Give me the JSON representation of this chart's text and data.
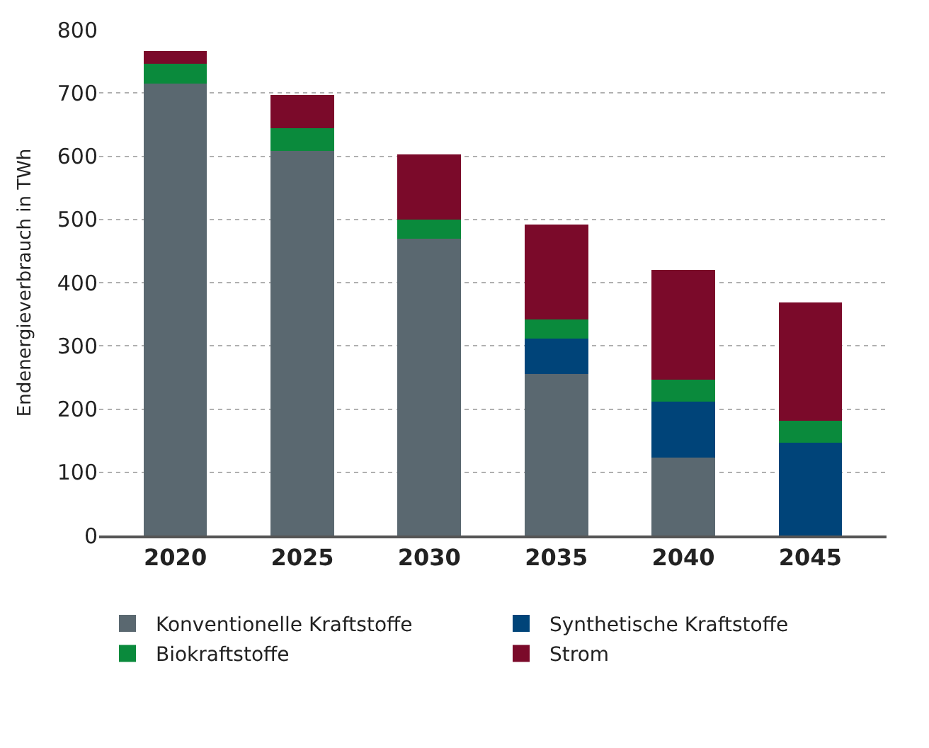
{
  "chart_data": {
    "type": "bar",
    "stacked": true,
    "ylabel": "Endenergieverbrauch in TWh",
    "categories": [
      "2020",
      "2025",
      "2030",
      "2035",
      "2040",
      "2045"
    ],
    "series": [
      {
        "name": "Konventionelle Kraftstoffe",
        "color": "#5a6870",
        "values": [
          715,
          608,
          469,
          255,
          123,
          0
        ]
      },
      {
        "name": "Synthetische Kraftstoffe",
        "color": "#004479",
        "values": [
          0,
          0,
          0,
          56,
          89,
          147
        ]
      },
      {
        "name": "Biokraftstoffe",
        "color": "#0a8a3c",
        "values": [
          31,
          36,
          31,
          31,
          34,
          34
        ]
      },
      {
        "name": "Strom",
        "color": "#7b0a2a",
        "values": [
          20,
          53,
          103,
          150,
          174,
          188
        ]
      }
    ],
    "ylim": [
      0,
      800
    ],
    "yticks": [
      0,
      100,
      200,
      300,
      400,
      500,
      600,
      700,
      800
    ],
    "grid": "y",
    "legend": "bottom"
  }
}
